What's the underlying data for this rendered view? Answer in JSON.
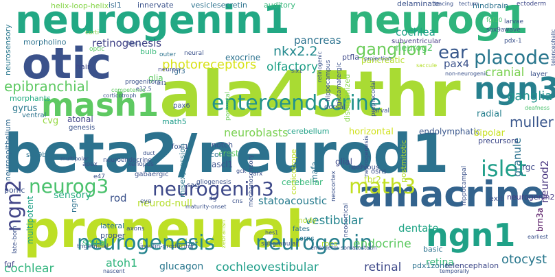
{
  "words": [
    {
      "text": "ala45thr",
      "color": "#a9db33"
    },
    {
      "text": "beta2/neurod1",
      "color": "#2c728e"
    },
    {
      "text": "proneural",
      "color": "#bddf26"
    },
    {
      "text": "neurogenin1",
      "color": "#22a884"
    },
    {
      "text": "neurog1",
      "color": "#2fb47c"
    },
    {
      "text": "otic",
      "color": "#3b528b"
    },
    {
      "text": "amacrine",
      "color": "#33638d"
    },
    {
      "text": "ngn1",
      "color": "#1fa187"
    },
    {
      "text": "mash1",
      "color": "#5ec962"
    },
    {
      "text": "ngn3",
      "color": "#27808e"
    },
    {
      "text": "neurogenesis",
      "color": "#25848e"
    },
    {
      "text": "neurogenin",
      "color": "#277f8e"
    },
    {
      "text": "enteroendocrine",
      "color": "#21918c"
    },
    {
      "text": "neurogenin3",
      "color": "#3e4989"
    },
    {
      "text": "neurog3",
      "color": "#4ac16d"
    },
    {
      "text": "math3",
      "color": "#c2df23"
    },
    {
      "text": "islet",
      "color": "#1f9e89"
    },
    {
      "text": "ngn2",
      "color": "#414487"
    },
    {
      "text": "placode",
      "color": "#2a778e"
    },
    {
      "text": "ear",
      "color": "#38588c"
    },
    {
      "text": "ganglion",
      "color": "#6ccd5a"
    },
    {
      "text": "epibranchial",
      "color": "#5ec962"
    },
    {
      "text": "photoreceptors",
      "color": "#d8e219"
    },
    {
      "text": "retinogenesis",
      "color": "#414487"
    },
    {
      "text": "pancreas",
      "color": "#2c728e"
    },
    {
      "text": "nkx2.2",
      "color": "#23898e"
    },
    {
      "text": "olfactory",
      "color": "#1fa187"
    },
    {
      "text": "neurog2",
      "color": "#56c667"
    },
    {
      "text": "pax4",
      "color": "#3b528b"
    },
    {
      "text": "cranial",
      "color": "#7ad151"
    },
    {
      "text": "ganglia",
      "color": "#21918c"
    },
    {
      "text": "muller",
      "color": "#39568c"
    },
    {
      "text": "neuroblasts",
      "color": "#7ad151"
    },
    {
      "text": "cochleovestibular",
      "color": "#1f9e89"
    },
    {
      "text": "retinal",
      "color": "#3e4989"
    },
    {
      "text": "cochlear",
      "color": "#2fb47c"
    },
    {
      "text": "vestibular",
      "color": "#25848e"
    },
    {
      "text": "endocrine",
      "color": "#5ec962"
    },
    {
      "text": "neurod-null",
      "color": "#b5de2b"
    },
    {
      "text": "statoacoustic",
      "color": "#287c8e"
    },
    {
      "text": "sensory",
      "color": "#26ad81"
    },
    {
      "text": "rod",
      "color": "#3b528b"
    },
    {
      "text": "granule",
      "color": "#2c728e"
    },
    {
      "text": "otocyst",
      "color": "#2a788e"
    },
    {
      "text": "retina",
      "color": "#35b779"
    },
    {
      "text": "dentate",
      "color": "#20a486"
    },
    {
      "text": "neurod2",
      "color": "#46337e"
    },
    {
      "text": "atoh1",
      "color": "#2fb47c"
    },
    {
      "text": "glucagon",
      "color": "#2a778e"
    },
    {
      "text": "cochlea",
      "color": "#1fa187"
    },
    {
      "text": "hindbrain",
      "color": "#2c728e"
    },
    {
      "text": "auditory",
      "color": "#35b779"
    },
    {
      "text": "innervate",
      "color": "#3b528b"
    },
    {
      "text": "vesiclesecretin",
      "color": "#2c728e"
    },
    {
      "text": "isl1",
      "color": "#31688e"
    },
    {
      "text": "helix-loop-helix",
      "color": "#86d549"
    },
    {
      "text": "delaminate",
      "color": "#3b528b"
    },
    {
      "text": "subventricular",
      "color": "#443983"
    },
    {
      "text": "morpholino",
      "color": "#2c728e"
    },
    {
      "text": "neurosensory",
      "color": "#2a788e"
    },
    {
      "text": "bulb",
      "color": "#35b779"
    },
    {
      "text": "hair",
      "color": "#3e4989"
    },
    {
      "text": "glia",
      "color": "#5ec962"
    },
    {
      "text": "fgf3",
      "color": "#31688e"
    },
    {
      "text": "gyrus",
      "color": "#2a788e"
    },
    {
      "text": "morphants",
      "color": "#25ab82"
    },
    {
      "text": "cvg",
      "color": "#95d840"
    },
    {
      "text": "atonal",
      "color": "#414487"
    },
    {
      "text": "math5",
      "color": "#1e9c89"
    },
    {
      "text": "genesis",
      "color": "#3b528b"
    },
    {
      "text": "cerebellum",
      "color": "#1fa187"
    },
    {
      "text": "horizontal",
      "color": "#d0e11c"
    },
    {
      "text": "endolymphatic",
      "color": "#39568c"
    },
    {
      "text": "bipolar",
      "color": "#c8e020"
    },
    {
      "text": "precursors",
      "color": "#3e4989"
    },
    {
      "text": "radial",
      "color": "#27808e"
    },
    {
      "text": "misexpression",
      "color": "#2a778e"
    },
    {
      "text": "ascl1",
      "color": "#3b528b"
    },
    {
      "text": "crest",
      "color": "#5ec962"
    },
    {
      "text": "glial",
      "color": "#3e4989"
    },
    {
      "text": "rgc",
      "color": "#3e4989"
    },
    {
      "text": "mafa",
      "color": "#2c728e"
    },
    {
      "text": "cerebellar",
      "color": "#35b779"
    },
    {
      "text": "tbr2",
      "color": "#bddf26"
    },
    {
      "text": "neurogenin2",
      "color": "#443983"
    },
    {
      "text": "exit",
      "color": "#3b528b"
    },
    {
      "text": "pomc",
      "color": "#3b528b"
    },
    {
      "text": "neuroepithelium",
      "color": "#31688e"
    },
    {
      "text": "multipotent",
      "color": "#1fa187"
    },
    {
      "text": "spiral",
      "color": "#35b779"
    },
    {
      "text": "hpf",
      "color": "#2a788e"
    },
    {
      "text": "basic",
      "color": "#2c728e"
    },
    {
      "text": "pdx1zone",
      "color": "#2c728e"
    },
    {
      "text": "telencephalon",
      "color": "#3e4989"
    },
    {
      "text": "ngn",
      "color": "#2c728e"
    },
    {
      "text": "fgf",
      "color": "#414487"
    },
    {
      "text": "brn3a",
      "color": "#440154"
    },
    {
      "text": "cone",
      "color": "#2c728e"
    },
    {
      "text": "notch",
      "color": "#3b528b"
    },
    {
      "text": "foxi1",
      "color": "#3b528b"
    },
    {
      "text": "tbx1",
      "color": "#3b528b"
    },
    {
      "text": "optic",
      "color": "#5ec962"
    },
    {
      "text": "corti",
      "color": "#86d549"
    },
    {
      "text": "outer",
      "color": "#2c728e"
    },
    {
      "text": "neural",
      "color": "#3b528b"
    },
    {
      "text": "neuron",
      "color": "#3e4989"
    },
    {
      "text": "exocrine",
      "color": "#2c728e"
    },
    {
      "text": "ptfla",
      "color": "#3e4989"
    },
    {
      "text": "pancreatic",
      "color": "#b5de2b"
    },
    {
      "text": "progenitors",
      "color": "#3b528b"
    },
    {
      "text": "pax6",
      "color": "#3b528b"
    },
    {
      "text": "sox9b",
      "color": "#2c728e"
    },
    {
      "text": "ventral",
      "color": "#2c728e"
    },
    {
      "text": "apex",
      "color": "#3b528b"
    },
    {
      "text": "xenopus",
      "color": "#3b528b"
    },
    {
      "text": "gabaergic",
      "color": "#3b528b"
    },
    {
      "text": "nervous",
      "color": "#3b528b"
    },
    {
      "text": "sag",
      "color": "#3b528b"
    },
    {
      "text": "dorsal",
      "color": "#3b528b"
    },
    {
      "text": "layer",
      "color": "#3b528b"
    },
    {
      "text": "deafness",
      "color": "#4ac16d"
    },
    {
      "text": "larval",
      "color": "#3b528b"
    },
    {
      "text": "ectoderm",
      "color": "#3e4989"
    },
    {
      "text": "tracing",
      "color": "#3b528b"
    },
    {
      "text": "tectum",
      "color": "#3b528b"
    },
    {
      "text": "sox9a",
      "color": "#3b528b"
    },
    {
      "text": "pdx-1",
      "color": "#3b528b"
    },
    {
      "text": "larvae",
      "color": "#3b528b"
    },
    {
      "text": "wave",
      "color": "#3b528b"
    },
    {
      "text": "fgf10",
      "color": "#4ac16d"
    },
    {
      "text": "eye",
      "color": "#3b528b"
    },
    {
      "text": "lateral",
      "color": "#2c728e"
    },
    {
      "text": "proper",
      "color": "#3b528b"
    },
    {
      "text": "cns",
      "color": "#3b528b"
    },
    {
      "text": "dg",
      "color": "#3b528b"
    },
    {
      "text": "mody",
      "color": "#b5de2b"
    },
    {
      "text": "fates",
      "color": "#2c728e"
    },
    {
      "text": "orns",
      "color": "#2c728e"
    },
    {
      "text": "rpcs",
      "color": "#b5de2b"
    },
    {
      "text": "osns",
      "color": "#3b528b"
    },
    {
      "text": "ngn3-",
      "color": "#3b528b"
    },
    {
      "text": "arx",
      "color": "#3b528b"
    },
    {
      "text": "e47",
      "color": "#3b528b"
    },
    {
      "text": "gck",
      "color": "#3b528b"
    },
    {
      "text": "hes1",
      "color": "#3b528b"
    },
    {
      "text": "endoderm",
      "color": "#3b528b"
    },
    {
      "text": "somatostatin",
      "color": "#3b528b"
    },
    {
      "text": "trigeminal",
      "color": "#3b528b"
    },
    {
      "text": "axons",
      "color": "#3b528b"
    },
    {
      "text": "insulin-producing",
      "color": "#3b528b"
    },
    {
      "text": "subgranular",
      "color": "#3b528b"
    },
    {
      "text": "nascent",
      "color": "#3b528b"
    },
    {
      "text": "temporally",
      "color": "#3b528b"
    },
    {
      "text": "late-born",
      "color": "#3b528b"
    },
    {
      "text": "multipolar",
      "color": "#3b528b"
    },
    {
      "text": "duct",
      "color": "#3b528b"
    },
    {
      "text": "postnatal",
      "color": "#6ccd5a"
    },
    {
      "text": "retinogenic",
      "color": "#3b528b"
    },
    {
      "text": "hippocampus",
      "color": "#3b528b"
    },
    {
      "text": "glutamatergic",
      "color": "#3b528b"
    },
    {
      "text": "disorganized",
      "color": "#86d549"
    },
    {
      "text": "preplacodal",
      "color": "#3b528b"
    },
    {
      "text": "postmitotic",
      "color": "#b5de2b"
    },
    {
      "text": "corticotrope",
      "color": "#bddf26"
    },
    {
      "text": "neocortex",
      "color": "#3b528b"
    },
    {
      "text": "mechanosensory",
      "color": "#3b528b"
    },
    {
      "text": "hippocampal",
      "color": "#3b528b"
    },
    {
      "text": "neocortical",
      "color": "#3b528b"
    },
    {
      "text": "zebrafish",
      "color": "#b5de2b"
    },
    {
      "text": "gliogenesis",
      "color": "#3b528b"
    },
    {
      "text": "neurogenesis",
      "color": "#3b528b"
    },
    {
      "text": "neuroendocrine",
      "color": "#3b528b"
    },
    {
      "text": "projection",
      "color": "#3b528b"
    },
    {
      "text": "competence",
      "color": "#5ec962"
    },
    {
      "text": "corticotroph",
      "color": "#3b528b"
    },
    {
      "text": "e12.5",
      "color": "#3b528b"
    },
    {
      "text": "dll1",
      "color": "#3b528b"
    },
    {
      "text": "telencephalic",
      "color": "#3b528b"
    },
    {
      "text": "non-neurogenic",
      "color": "#3b528b"
    },
    {
      "text": "saccule",
      "color": "#b5de2b"
    },
    {
      "text": "six1",
      "color": "#3b528b"
    },
    {
      "text": "maturity-onset",
      "color": "#3b528b"
    },
    {
      "text": "earliest",
      "color": "#3b528b"
    }
  ]
}
